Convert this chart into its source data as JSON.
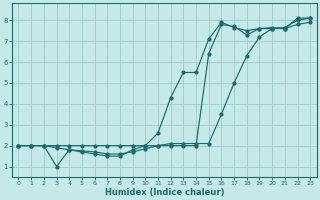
{
  "xlabel": "Humidex (Indice chaleur)",
  "bg_color": "#c5e8e8",
  "grid_color": "#a0cccc",
  "line_color": "#1a6b6b",
  "xlim": [
    -0.5,
    23.5
  ],
  "ylim": [
    0.5,
    8.8
  ],
  "xticks": [
    0,
    1,
    2,
    3,
    4,
    5,
    6,
    7,
    8,
    9,
    10,
    11,
    12,
    13,
    14,
    15,
    16,
    17,
    18,
    19,
    20,
    21,
    22,
    23
  ],
  "yticks": [
    1,
    2,
    3,
    4,
    5,
    6,
    7,
    8
  ],
  "line1_x": [
    0,
    1,
    2,
    3,
    4,
    5,
    6,
    7,
    8,
    9,
    10,
    11,
    12,
    13,
    14,
    15,
    16,
    17,
    18,
    19,
    20,
    21,
    22,
    23
  ],
  "line1_y": [
    2.0,
    2.0,
    2.0,
    1.0,
    1.8,
    1.7,
    1.6,
    1.5,
    1.5,
    1.8,
    2.0,
    2.6,
    4.3,
    5.5,
    5.5,
    7.1,
    7.9,
    7.65,
    7.5,
    7.6,
    7.65,
    7.6,
    8.1,
    8.1
  ],
  "line2_x": [
    0,
    1,
    2,
    3,
    4,
    5,
    6,
    7,
    8,
    9,
    10,
    11,
    12,
    13,
    14,
    15,
    16,
    17,
    18,
    19,
    20,
    21,
    22,
    23
  ],
  "line2_y": [
    2.0,
    2.0,
    2.0,
    1.9,
    1.8,
    1.75,
    1.7,
    1.6,
    1.6,
    1.7,
    1.85,
    2.0,
    2.1,
    2.1,
    2.1,
    2.1,
    3.5,
    5.0,
    6.3,
    7.2,
    7.6,
    7.65,
    8.0,
    8.1
  ],
  "line3_x": [
    0,
    1,
    2,
    3,
    4,
    5,
    6,
    7,
    8,
    9,
    10,
    11,
    12,
    13,
    14,
    15,
    16,
    17,
    18,
    19,
    20,
    21,
    22,
    23
  ],
  "line3_y": [
    2.0,
    2.0,
    2.0,
    2.0,
    2.0,
    2.0,
    2.0,
    2.0,
    2.0,
    2.0,
    2.0,
    2.0,
    2.0,
    2.0,
    2.0,
    6.4,
    7.8,
    7.7,
    7.3,
    7.6,
    7.6,
    7.6,
    7.8,
    7.9
  ]
}
